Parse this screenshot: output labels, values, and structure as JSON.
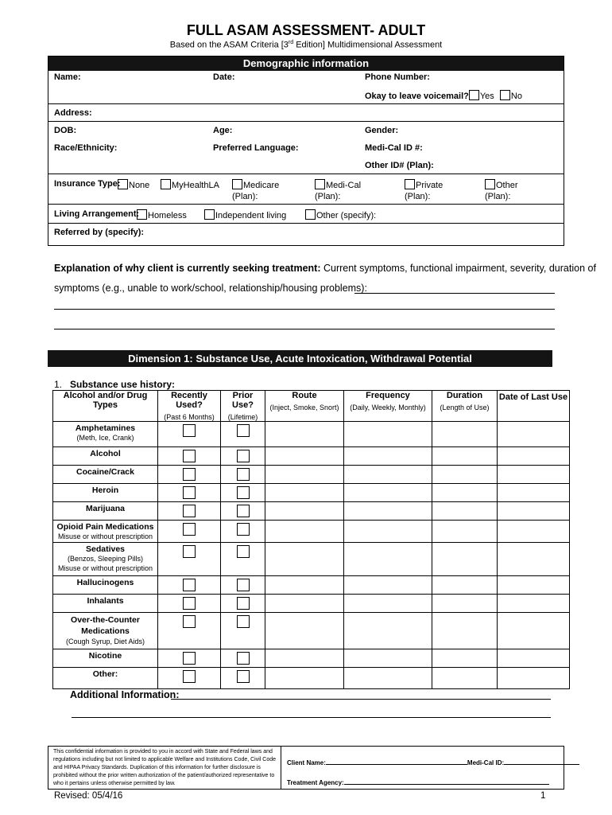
{
  "title": "FULL ASAM ASSESSMENT- ADULT",
  "subtitle_pre": "Based on the ASAM Criteria [3",
  "subtitle_sup": "rd",
  "subtitle_post": " Edition] Multidimensional Assessment",
  "demographic": {
    "header": "Demographic information",
    "name": "Name:",
    "date": "Date:",
    "phone": "Phone Number:",
    "voicemail": "Okay to leave voicemail?",
    "yes": "Yes",
    "no": "No",
    "address": "Address:",
    "dob": "DOB:",
    "age": "Age:",
    "gender": "Gender:",
    "race": "Race/Ethnicity:",
    "language": "Preferred Language:",
    "medi_cal_id": "Medi-Cal ID #:",
    "other_id": "Other ID# (Plan):",
    "insurance_label": "Insurance Type:",
    "insurance": [
      {
        "label": "None"
      },
      {
        "label": "MyHealthLA"
      },
      {
        "label": "Medicare",
        "plan": "(Plan):"
      },
      {
        "label": "Medi-Cal",
        "plan": "(Plan):"
      },
      {
        "label": "Private",
        "plan": "(Plan):"
      },
      {
        "label": "Other",
        "plan": "(Plan):"
      }
    ],
    "living_label": "Living Arrangement:",
    "living": [
      "Homeless",
      "Independent living",
      "Other (specify):"
    ],
    "referred": "Referred by (specify):"
  },
  "explanation": {
    "bold": "Explanation of why client is currently seeking treatment:",
    "text1": " Current symptoms, functional impairment, severity, duration of",
    "text2": "symptoms (e.g., unable to work/school, relationship/housing problems):"
  },
  "dimension1": {
    "header": "Dimension 1: Substance Use, Acute Intoxication, Withdrawal Potential",
    "q1_num": "1.",
    "q1": "Substance use history:",
    "columns": [
      {
        "label": "Alcohol and/or Drug Types",
        "sub": ""
      },
      {
        "label": "Recently Used?",
        "sub": "(Past 6 Months)"
      },
      {
        "label": "Prior Use?",
        "sub": "(Lifetime)"
      },
      {
        "label": "Route",
        "sub": "(Inject, Smoke, Snort)"
      },
      {
        "label": "Frequency",
        "sub": "(Daily, Weekly, Monthly)"
      },
      {
        "label": "Duration",
        "sub": "(Length of Use)"
      },
      {
        "label": "Date of Last Use",
        "sub": ""
      }
    ],
    "rows": [
      {
        "name": "Amphetamines",
        "note": "(Meth, Ice, Crank)"
      },
      {
        "name": "Alcohol",
        "note": ""
      },
      {
        "name": "Cocaine/Crack",
        "note": ""
      },
      {
        "name": "Heroin",
        "note": ""
      },
      {
        "name": "Marijuana",
        "note": ""
      },
      {
        "name": "Opioid Pain Medications",
        "note": "Misuse or without prescription"
      },
      {
        "name": "Sedatives",
        "note": "(Benzos, Sleeping Pills)",
        "note2": "Misuse or without prescription"
      },
      {
        "name": "Hallucinogens",
        "note": ""
      },
      {
        "name": "Inhalants",
        "note": ""
      },
      {
        "name": "Over-the-Counter Medications",
        "note": "(Cough Syrup, Diet Aids)"
      },
      {
        "name": "Nicotine",
        "note": ""
      },
      {
        "name": "Other:",
        "note": ""
      }
    ],
    "additional": "Additional Information:"
  },
  "footer": {
    "confidential": "This confidential information is provided to you in accord with State and Federal laws and regulations including but not limited to applicable Welfare and Institutions Code, Civil Code and HIPAA Privacy Standards. Duplication of this information for further disclosure is prohibited without the prior written authorization of the patient/authorized representative to who it pertains unless otherwise permitted by law.",
    "client_name": "Client Name:",
    "medi_cal": "Medi-Cal ID:",
    "agency": "Treatment Agency:",
    "revised": "Revised: 05/4/16",
    "page": "1"
  }
}
